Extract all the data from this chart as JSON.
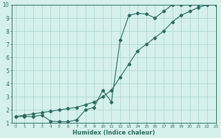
{
  "xlabel": "Humidex (Indice chaleur)",
  "bg_color": "#d6f0ec",
  "grid_color": "#b0d8d0",
  "line_color": "#2a6b5e",
  "xlim": [
    -0.5,
    23
  ],
  "ylim": [
    1,
    10
  ],
  "xticks": [
    0,
    1,
    2,
    3,
    4,
    5,
    6,
    7,
    8,
    9,
    10,
    11,
    12,
    13,
    14,
    15,
    16,
    17,
    18,
    19,
    20,
    21,
    22,
    23
  ],
  "yticks": [
    1,
    2,
    3,
    4,
    5,
    6,
    7,
    8,
    9,
    10
  ],
  "line1_x": [
    0,
    1,
    2,
    3,
    4,
    5,
    6,
    7,
    8,
    9,
    10,
    11,
    12,
    13,
    14,
    15,
    16,
    17,
    18,
    19,
    20,
    21,
    22,
    23
  ],
  "line1_y": [
    1.5,
    1.5,
    1.5,
    1.6,
    1.15,
    1.1,
    1.1,
    1.25,
    2.0,
    2.2,
    3.5,
    2.6,
    7.3,
    9.2,
    9.35,
    9.3,
    9.0,
    9.5,
    10.0,
    10.0,
    10.0,
    10.0,
    10.0,
    10.0
  ],
  "line2_x": [
    0,
    1,
    2,
    3,
    4,
    5,
    6,
    7,
    8,
    9,
    10,
    11,
    12,
    13,
    14,
    15,
    16,
    17,
    18,
    19,
    20,
    21,
    22,
    23
  ],
  "line2_y": [
    1.5,
    1.6,
    1.7,
    1.8,
    1.9,
    2.0,
    2.1,
    2.2,
    2.4,
    2.6,
    3.0,
    3.5,
    4.5,
    5.5,
    6.5,
    7.0,
    7.5,
    8.0,
    8.7,
    9.2,
    9.5,
    9.8,
    10.0,
    10.0
  ]
}
